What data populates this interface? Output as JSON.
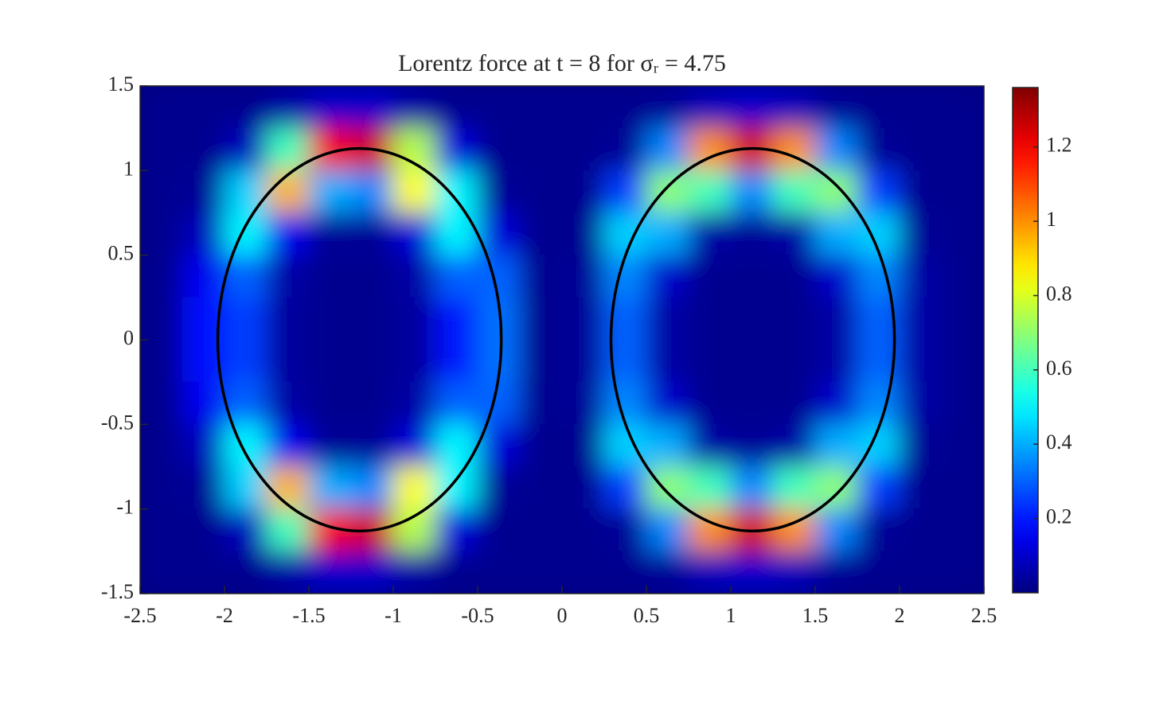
{
  "chart_data": {
    "type": "heatmap",
    "title": "Lorentz force at t = 8 for σᵣ = 4.75",
    "x": [
      -2.375,
      -2.125,
      -1.875,
      -1.625,
      -1.375,
      -1.125,
      -0.875,
      -0.625,
      -0.375,
      -0.125,
      0.125,
      0.375,
      0.625,
      0.875,
      1.125,
      1.375,
      1.625,
      1.875,
      2.125,
      2.375
    ],
    "y": [
      1.375,
      1.125,
      0.875,
      0.625,
      0.375,
      0.125,
      -0.125,
      -0.375,
      -0.625,
      -0.875,
      -1.125,
      -1.375
    ],
    "z": [
      [
        0.02,
        0.02,
        0.02,
        0.05,
        0.1,
        0.1,
        0.05,
        0.02,
        0.02,
        0.02,
        0.02,
        0.02,
        0.03,
        0.08,
        0.1,
        0.08,
        0.03,
        0.02,
        0.02,
        0.02
      ],
      [
        0.02,
        0.02,
        0.08,
        0.6,
        1.2,
        1.25,
        0.75,
        0.12,
        0.02,
        0.02,
        0.02,
        0.03,
        0.35,
        1.0,
        1.25,
        1.0,
        0.35,
        0.03,
        0.02,
        0.02
      ],
      [
        0.02,
        0.03,
        0.45,
        0.95,
        0.4,
        0.35,
        0.85,
        0.5,
        0.03,
        0.02,
        0.02,
        0.25,
        0.7,
        0.6,
        0.35,
        0.6,
        0.7,
        0.25,
        0.02,
        0.02
      ],
      [
        0.02,
        0.08,
        0.5,
        0.15,
        0.03,
        0.03,
        0.12,
        0.5,
        0.12,
        0.02,
        0.02,
        0.45,
        0.4,
        0.05,
        0.03,
        0.05,
        0.4,
        0.45,
        0.03,
        0.02
      ],
      [
        0.02,
        0.15,
        0.3,
        0.05,
        0.02,
        0.02,
        0.05,
        0.3,
        0.3,
        0.02,
        0.03,
        0.35,
        0.1,
        0.02,
        0.02,
        0.02,
        0.1,
        0.35,
        0.05,
        0.02
      ],
      [
        0.02,
        0.18,
        0.25,
        0.04,
        0.02,
        0.02,
        0.04,
        0.2,
        0.32,
        0.02,
        0.03,
        0.3,
        0.05,
        0.02,
        0.02,
        0.02,
        0.05,
        0.3,
        0.05,
        0.02
      ],
      [
        0.02,
        0.18,
        0.25,
        0.04,
        0.02,
        0.02,
        0.04,
        0.2,
        0.32,
        0.02,
        0.03,
        0.3,
        0.05,
        0.02,
        0.02,
        0.02,
        0.05,
        0.3,
        0.05,
        0.02
      ],
      [
        0.02,
        0.15,
        0.3,
        0.05,
        0.02,
        0.02,
        0.05,
        0.3,
        0.3,
        0.02,
        0.03,
        0.35,
        0.1,
        0.02,
        0.02,
        0.02,
        0.1,
        0.35,
        0.05,
        0.02
      ],
      [
        0.02,
        0.08,
        0.5,
        0.15,
        0.03,
        0.03,
        0.12,
        0.5,
        0.12,
        0.02,
        0.02,
        0.45,
        0.4,
        0.05,
        0.03,
        0.05,
        0.4,
        0.45,
        0.03,
        0.02
      ],
      [
        0.02,
        0.03,
        0.45,
        0.95,
        0.4,
        0.35,
        0.85,
        0.5,
        0.03,
        0.02,
        0.02,
        0.25,
        0.7,
        0.6,
        0.35,
        0.6,
        0.7,
        0.25,
        0.02,
        0.02
      ],
      [
        0.02,
        0.02,
        0.08,
        0.6,
        1.2,
        1.25,
        0.75,
        0.12,
        0.02,
        0.02,
        0.02,
        0.03,
        0.35,
        1.0,
        1.25,
        1.0,
        0.35,
        0.03,
        0.02,
        0.02
      ],
      [
        0.02,
        0.02,
        0.02,
        0.05,
        0.1,
        0.1,
        0.05,
        0.02,
        0.02,
        0.02,
        0.02,
        0.02,
        0.03,
        0.08,
        0.1,
        0.08,
        0.03,
        0.02,
        0.02,
        0.02
      ]
    ],
    "xlim": [
      -2.5,
      2.5
    ],
    "ylim": [
      -1.5,
      1.5
    ],
    "xticks": [
      -2.5,
      -2,
      -1.5,
      -1,
      -0.5,
      0,
      0.5,
      1,
      1.5,
      2,
      2.5
    ],
    "yticks": [
      -1.5,
      -1,
      -0.5,
      0,
      0.5,
      1,
      1.5
    ],
    "colormap": "jet",
    "clim": [
      0,
      1.36
    ],
    "cticks": [
      0.2,
      0.4,
      0.6,
      0.8,
      1,
      1.2
    ],
    "contours": [
      {
        "cx": -1.2,
        "cy": 0,
        "rx": 0.84,
        "ry": 1.13
      },
      {
        "cx": 1.13,
        "cy": 0,
        "rx": 0.84,
        "ry": 1.13
      }
    ],
    "contour_color": "#000000"
  }
}
